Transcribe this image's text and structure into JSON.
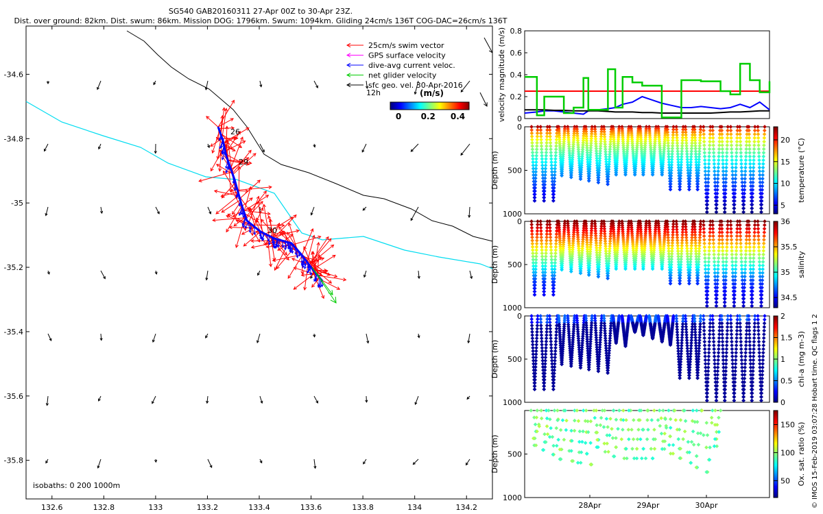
{
  "header": {
    "line1": "SG540 GAB20160311 27-Apr 00Z to 30-Apr 23Z.",
    "line2": "Dist. over ground: 82km. Dist. swum: 86km. Mission DOG: 1796km. Swum: 1094km. Gliding 24cm/s 136T COG-DAC=26cm/s 136T"
  },
  "credit": "© IMOS 15-Feb-2019 03:07:28 Hobart time. QC flags 1  2",
  "map": {
    "x_ticks": [
      "132.6",
      "132.8",
      "133",
      "133.2",
      "133.4",
      "133.6",
      "133.8",
      "134",
      "134.2"
    ],
    "y_ticks": [
      "-34.6",
      "-34.8",
      "-35",
      "-35.2",
      "-35.4",
      "-35.6",
      "-35.8"
    ],
    "legend": [
      "25cm/s swim vector",
      "GPS surface velocity",
      "dive-avg current veloc.",
      "net glider velocity",
      "sfc geo. vel. 30-Apr-2016"
    ],
    "legend_colors": [
      "#ff0000",
      "#ff00ff",
      "#0000ff",
      "#00cc00",
      "#000000"
    ],
    "scale_label": "12h",
    "colorbar_title": "(m/s)",
    "colorbar_ticks": [
      "0",
      "0.2",
      "0.4"
    ],
    "isobaths_label": "isobaths: 0   200  1000m",
    "track_labels": [
      "26",
      "29",
      "30"
    ]
  },
  "chart_data": [
    {
      "type": "line",
      "title": "",
      "ylabel": "velocity magnitude (m/s)",
      "ylim": [
        0,
        0.8
      ],
      "y_ticks": [
        "0",
        "0.2",
        "0.4",
        "0.6",
        "0.8"
      ],
      "x": [
        0,
        0.05,
        0.08,
        0.12,
        0.16,
        0.2,
        0.24,
        0.26,
        0.3,
        0.34,
        0.37,
        0.4,
        0.44,
        0.48,
        0.52,
        0.56,
        0.6,
        0.64,
        0.68,
        0.72,
        0.76,
        0.8,
        0.84,
        0.88,
        0.92,
        0.96,
        1
      ],
      "series": [
        {
          "color": "#ff0000",
          "values": [
            0.25,
            0.25,
            0.25,
            0.25,
            0.25,
            0.25,
            0.25,
            0.25,
            0.25,
            0.25,
            0.25,
            0.25,
            0.25,
            0.25,
            0.25,
            0.25,
            0.25,
            0.25,
            0.25,
            0.25,
            0.25,
            0.25,
            0.25,
            0.25,
            0.25,
            0.25,
            0.25
          ]
        },
        {
          "color": "#0000ff",
          "values": [
            0.05,
            0.06,
            0.07,
            0.07,
            0.06,
            0.05,
            0.04,
            0.07,
            0.08,
            0.09,
            0.1,
            0.13,
            0.15,
            0.2,
            0.17,
            0.14,
            0.12,
            0.1,
            0.1,
            0.11,
            0.1,
            0.09,
            0.1,
            0.13,
            0.1,
            0.15,
            0.08
          ]
        },
        {
          "color": "#000000",
          "values": [
            0.08,
            0.08,
            0.08,
            0.075,
            0.075,
            0.07,
            0.07,
            0.07,
            0.07,
            0.065,
            0.06,
            0.06,
            0.06,
            0.055,
            0.055,
            0.05,
            0.05,
            0.05,
            0.05,
            0.05,
            0.05,
            0.055,
            0.06,
            0.06,
            0.065,
            0.07,
            0.07
          ]
        },
        {
          "color": "#00cc00",
          "values": [
            0.38,
            0.03,
            0.2,
            0.2,
            0.05,
            0.1,
            0.37,
            0.08,
            0.08,
            0.45,
            0.1,
            0.38,
            0.33,
            0.3,
            0.3,
            0.01,
            0.01,
            0.35,
            0.35,
            0.34,
            0.34,
            0.25,
            0.22,
            0.5,
            0.35,
            0.24,
            0.34
          ]
        }
      ]
    },
    {
      "type": "scatter",
      "ylabel": "Depth (m)",
      "clabel": "temperature (°C)",
      "ylim": [
        1000,
        0
      ],
      "clim": [
        3,
        23
      ],
      "c_ticks": [
        "5",
        "10",
        "15",
        "20"
      ],
      "y_ticks": [
        "0",
        "500",
        "1000"
      ],
      "colormap": "jet"
    },
    {
      "type": "scatter",
      "ylabel": "Depth (m)",
      "clabel": "salinity",
      "ylim": [
        1000,
        0
      ],
      "clim": [
        34.3,
        36
      ],
      "c_ticks": [
        "34.5",
        "35",
        "35.5",
        "36"
      ],
      "y_ticks": [
        "0",
        "500",
        "1000"
      ],
      "colormap": "jet"
    },
    {
      "type": "scatter",
      "ylabel": "Depth (m)",
      "clabel": "chl-a (mg m-3)",
      "ylim": [
        1000,
        0
      ],
      "clim": [
        0,
        2
      ],
      "c_ticks": [
        "0",
        "0.5",
        "1",
        "1.5",
        "2"
      ],
      "y_ticks": [
        "0",
        "500",
        "1000"
      ],
      "colormap": "jet"
    },
    {
      "type": "scatter",
      "ylabel": "Depth (m)",
      "clabel": "Ox. sat. ratio (%)",
      "ylim": [
        1000,
        0
      ],
      "clim": [
        20,
        175
      ],
      "c_ticks": [
        "50",
        "100",
        "150"
      ],
      "y_ticks": [
        "500",
        "1000"
      ],
      "colormap": "jet",
      "x_ticks": [
        "28Apr",
        "29Apr",
        "30Apr"
      ]
    }
  ]
}
